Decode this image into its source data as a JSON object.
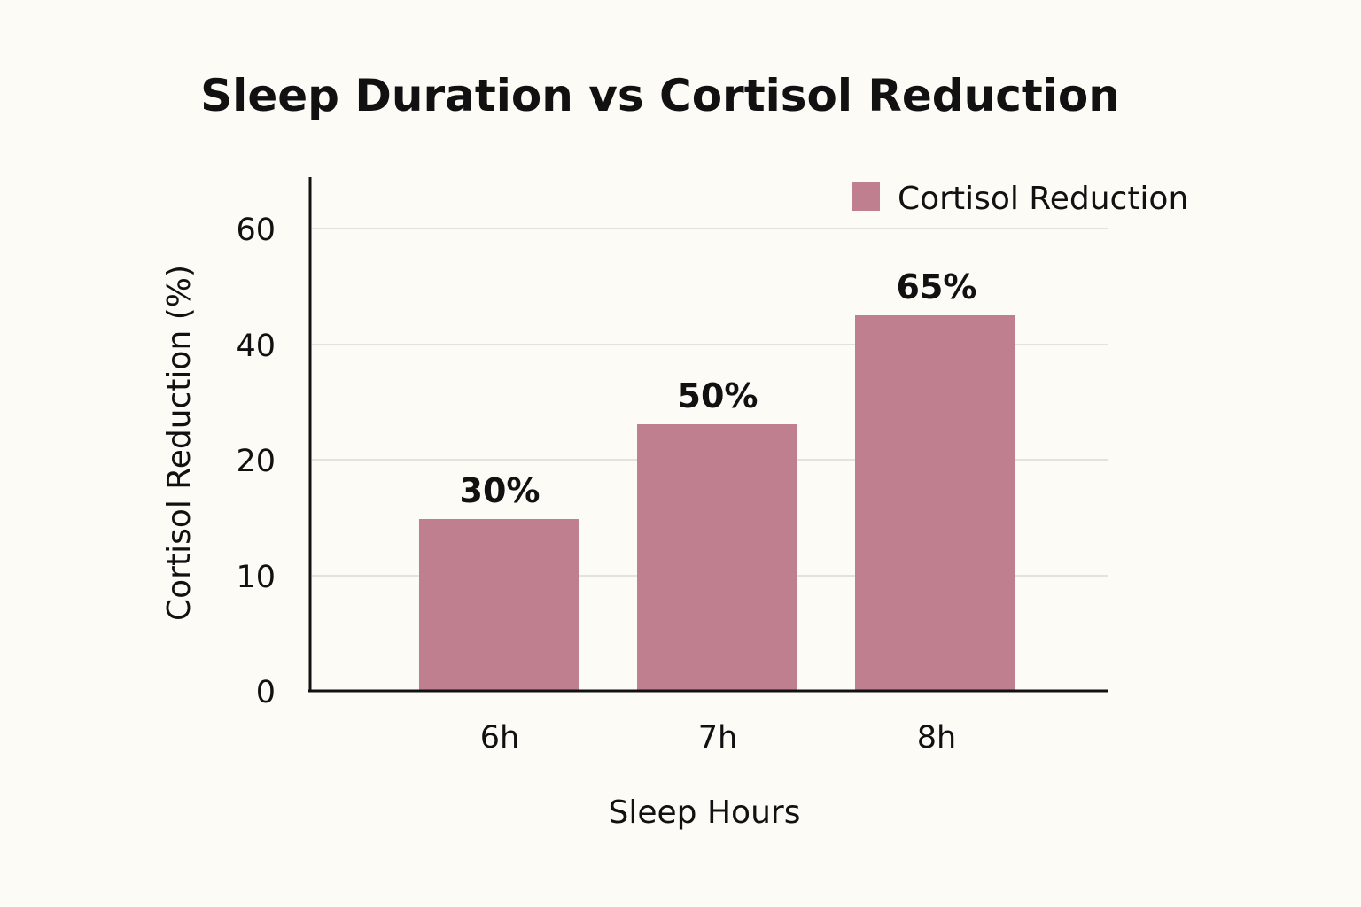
{
  "chart_data": {
    "type": "bar",
    "title": "Sleep Duration vs Cortisol Reduction",
    "xlabel": "Sleep Hours",
    "ylabel": "Cortisol Reduction (%)",
    "categories": [
      "6h",
      "7h",
      "8h"
    ],
    "series": [
      {
        "name": "Cortisol Reduction",
        "values": [
          30,
          50,
          65
        ],
        "labels": [
          "30%",
          "50%",
          "65%"
        ]
      }
    ],
    "yticks": [
      {
        "value": 0,
        "label": "0"
      },
      {
        "value": 10,
        "label": "10"
      },
      {
        "value": 20,
        "label": "20"
      },
      {
        "value": 40,
        "label": "40"
      },
      {
        "value": 60,
        "label": "60"
      }
    ],
    "grid": true,
    "legend_position": "top-right",
    "colors": {
      "bar": "#c07f8f",
      "grid": "#e4e2dc",
      "axis": "#111111",
      "background": "#fcfbf6"
    }
  }
}
